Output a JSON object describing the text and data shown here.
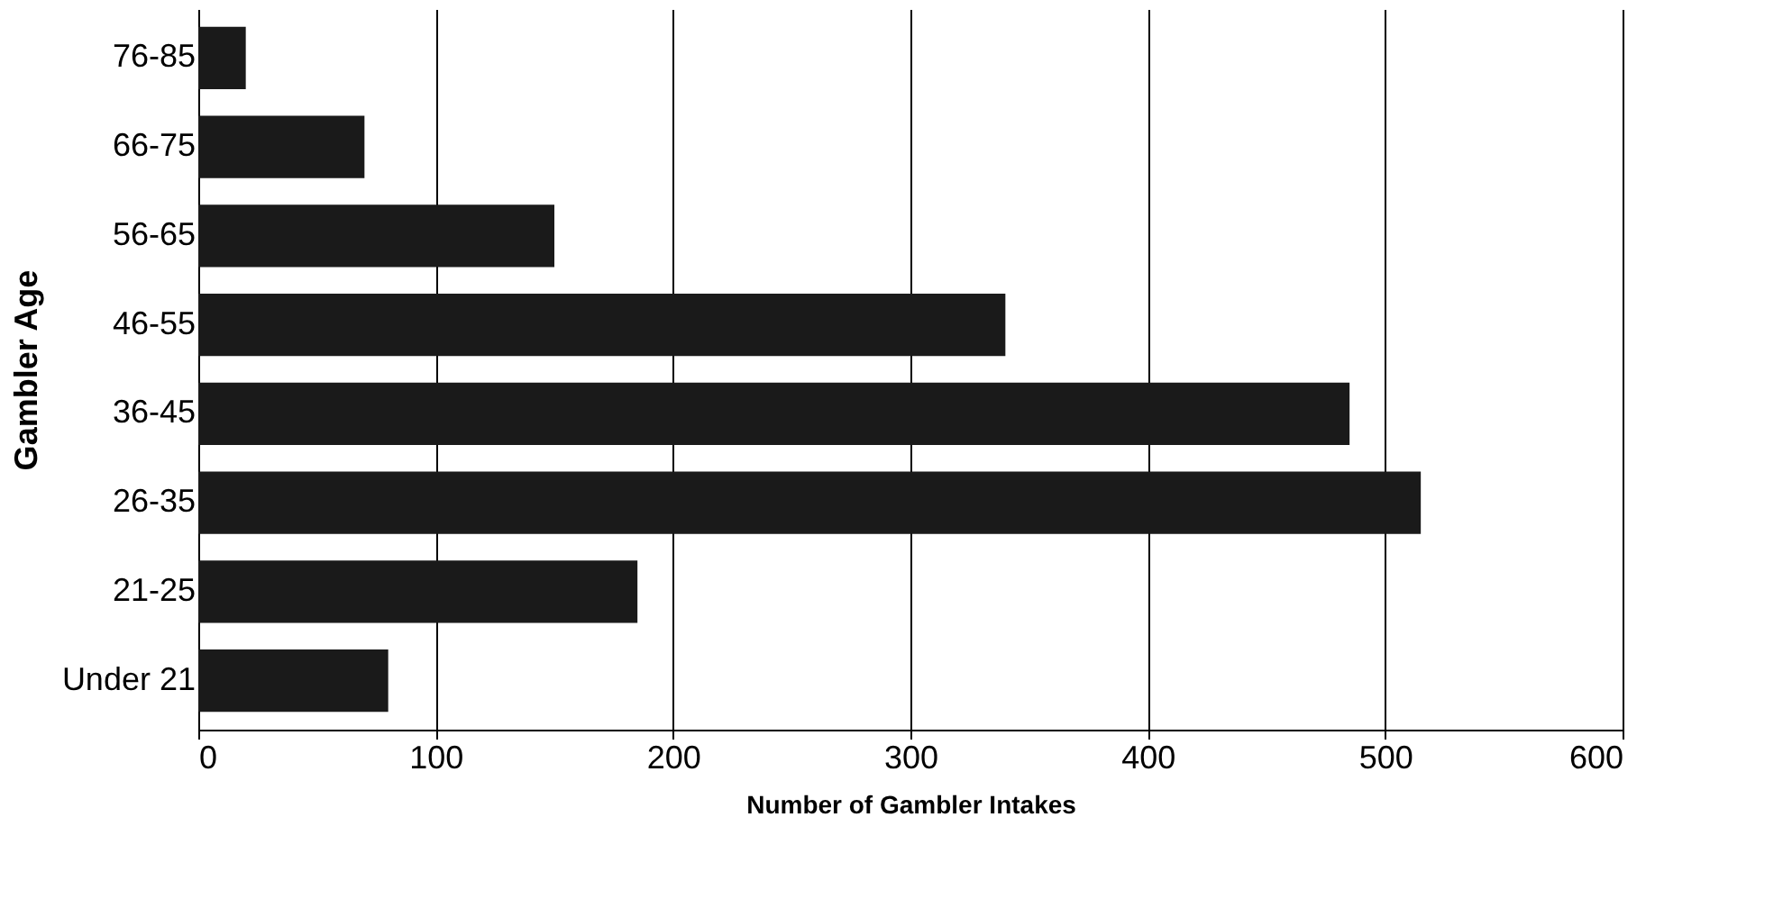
{
  "chart_data": {
    "type": "bar",
    "orientation": "horizontal",
    "categories": [
      "76-85",
      "66-75",
      "56-65",
      "46-55",
      "36-45",
      "26-35",
      "21-25",
      "Under 21"
    ],
    "values": [
      20,
      70,
      150,
      340,
      485,
      515,
      185,
      80
    ],
    "color": "#1a1a1a",
    "xlim": [
      0,
      600
    ],
    "xticks": [
      0,
      100,
      200,
      300,
      400,
      500,
      600
    ],
    "xlabel": "Number of Gambler Intakes",
    "ylabel": "Gambler Age",
    "grid": "x"
  }
}
